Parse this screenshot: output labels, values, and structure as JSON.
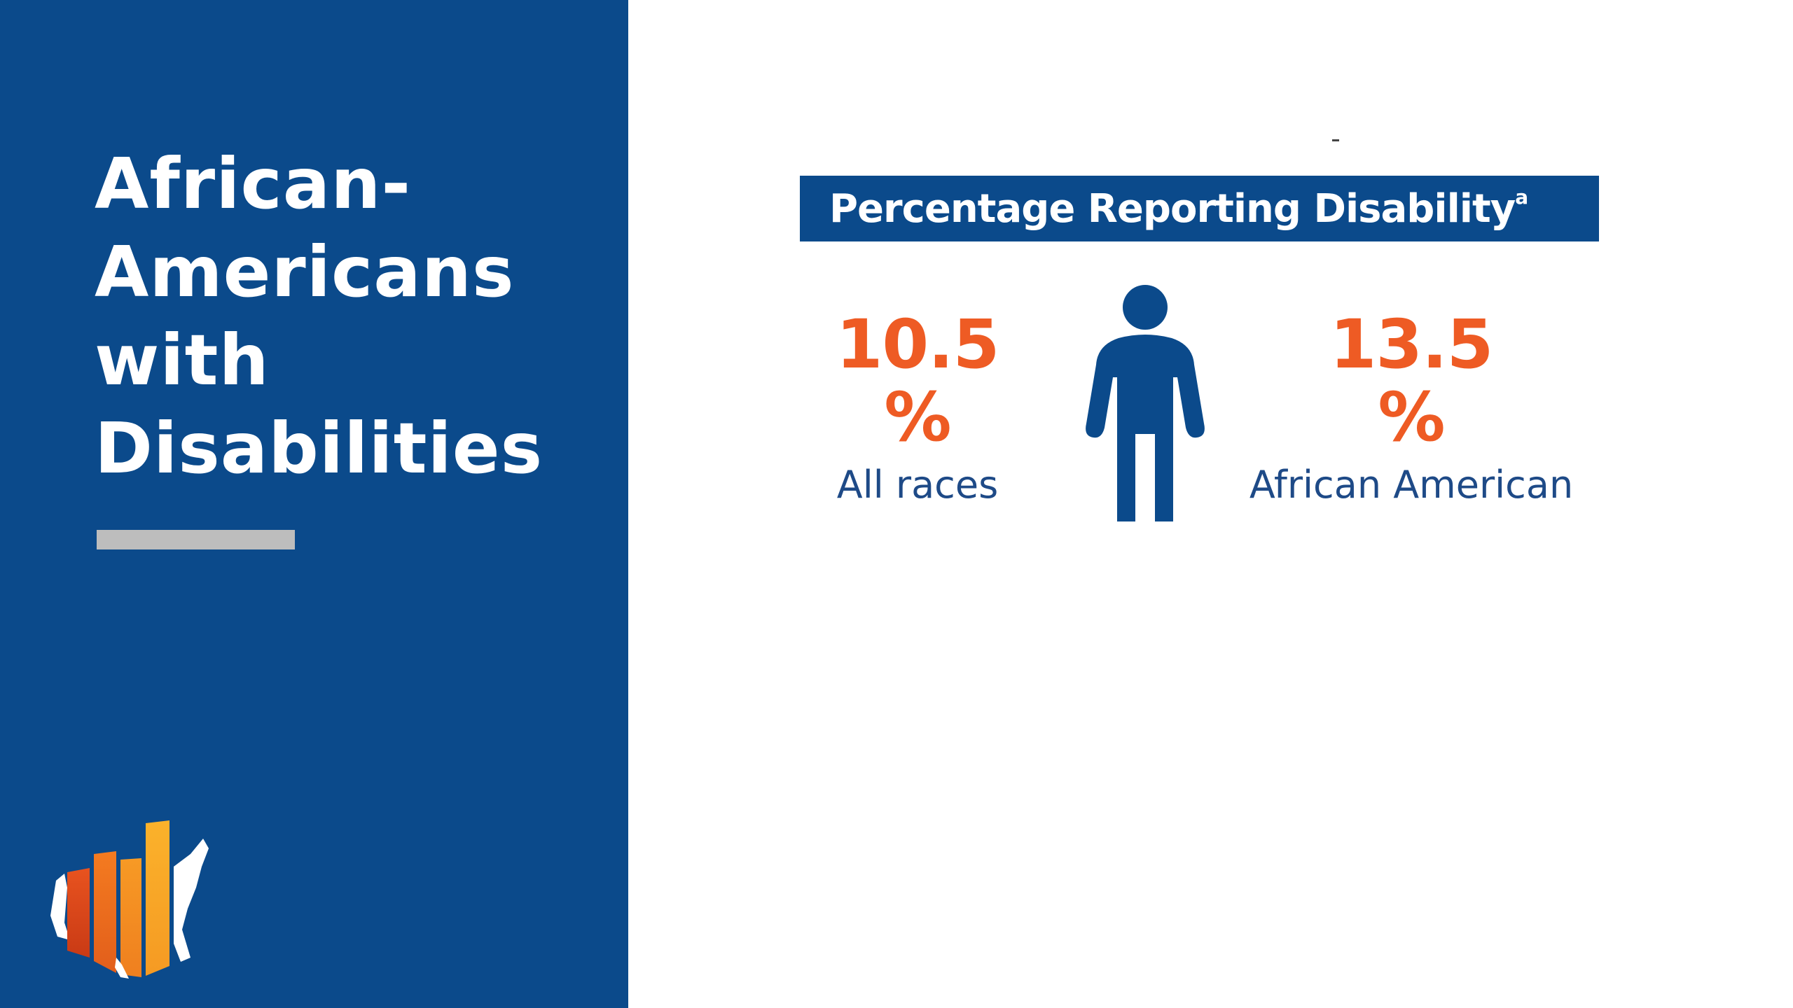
{
  "left_panel": {
    "title_lines": [
      "African-",
      "Americans",
      "with",
      "Disabilities"
    ],
    "background_color": "#0b4a8b",
    "logo_icon": "us-map-bar-chart-logo-icon"
  },
  "infographic": {
    "banner": {
      "text": "Percentage Reporting Disability",
      "superscript": "a"
    },
    "stats": [
      {
        "value": "10.5",
        "unit": "%",
        "label": "All races"
      },
      {
        "value": "13.5",
        "unit": "%",
        "label": "African American"
      }
    ],
    "person_icon": "person-icon",
    "accent_color": "#ee5b24",
    "label_color": "#1e4a87"
  }
}
